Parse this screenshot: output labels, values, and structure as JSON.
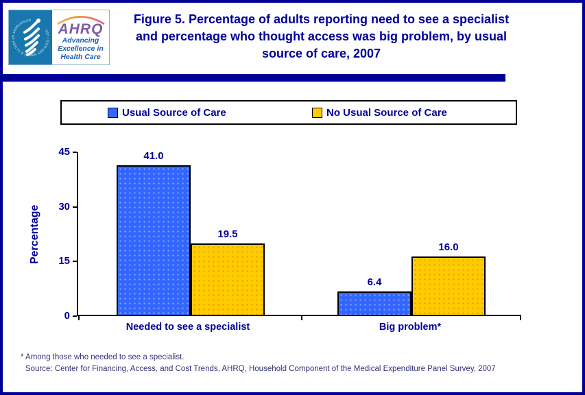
{
  "header": {
    "title": "Figure 5. Percentage of adults reporting need to see a specialist and percentage who thought access was big problem, by usual source of care, 2007",
    "logo": {
      "seal_text": "DEPARTMENT OF HEALTH & HUMAN SERVICES • USA",
      "acronym": "AHRQ",
      "tagline_lines": [
        "Advancing",
        "Excellence in",
        "Health Care"
      ]
    }
  },
  "colors": {
    "accent_navy": "#000099",
    "bar_blue": "#3366FF",
    "bar_yellow": "#FFCC00"
  },
  "chart_data": {
    "type": "bar",
    "categories": [
      "Needed to see a specialist",
      "Big problem*"
    ],
    "series": [
      {
        "name": "Usual Source of Care",
        "color": "#3366FF",
        "values": [
          41.0,
          6.4
        ]
      },
      {
        "name": "No Usual Source of Care",
        "color": "#FFCC00",
        "values": [
          19.5,
          16.0
        ]
      }
    ],
    "ylabel": "Percentage",
    "ylim": [
      0,
      45
    ],
    "yticks": [
      0,
      15,
      30,
      45
    ],
    "legend_position": "top",
    "grid": false,
    "data_label_decimals": 1
  },
  "footnotes": {
    "note": "* Among those who needed to see a specialist.",
    "source": "Source: Center for Financing, Access, and Cost Trends, AHRQ, Household Component of the Medical Expenditure Panel Survey, 2007"
  }
}
